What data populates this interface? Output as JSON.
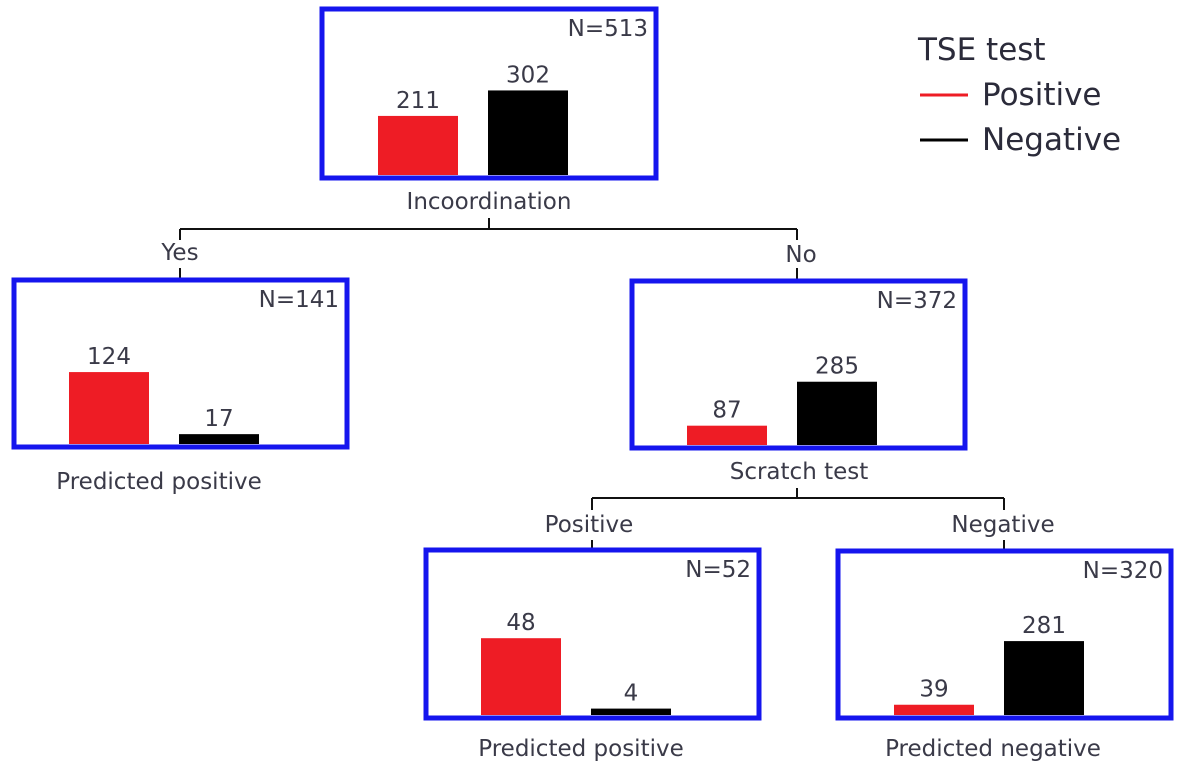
{
  "colors": {
    "positive": "#ee1c25",
    "negative": "#000000",
    "box_border": "#1515ee"
  },
  "legend": {
    "title": "TSE test",
    "entries": [
      {
        "label": "Positive",
        "color": "#ee1c25"
      },
      {
        "label": "Negative",
        "color": "#000000"
      }
    ]
  },
  "nodes": {
    "root": {
      "n_label": "N=513",
      "positive": 211,
      "negative": 302,
      "caption": "Incoordination"
    },
    "left": {
      "n_label": "N=141",
      "positive": 124,
      "negative": 17,
      "caption": "Predicted positive"
    },
    "right": {
      "n_label": "N=372",
      "positive": 87,
      "negative": 285,
      "caption": "Scratch test"
    },
    "right_left": {
      "n_label": "N=52",
      "positive": 48,
      "negative": 4,
      "caption": "Predicted positive"
    },
    "right_right": {
      "n_label": "N=320",
      "positive": 39,
      "negative": 281,
      "caption": "Predicted negative"
    }
  },
  "edges": {
    "root_left": "Yes",
    "root_right": "No",
    "right_left": "Positive",
    "right_right": "Negative"
  }
}
